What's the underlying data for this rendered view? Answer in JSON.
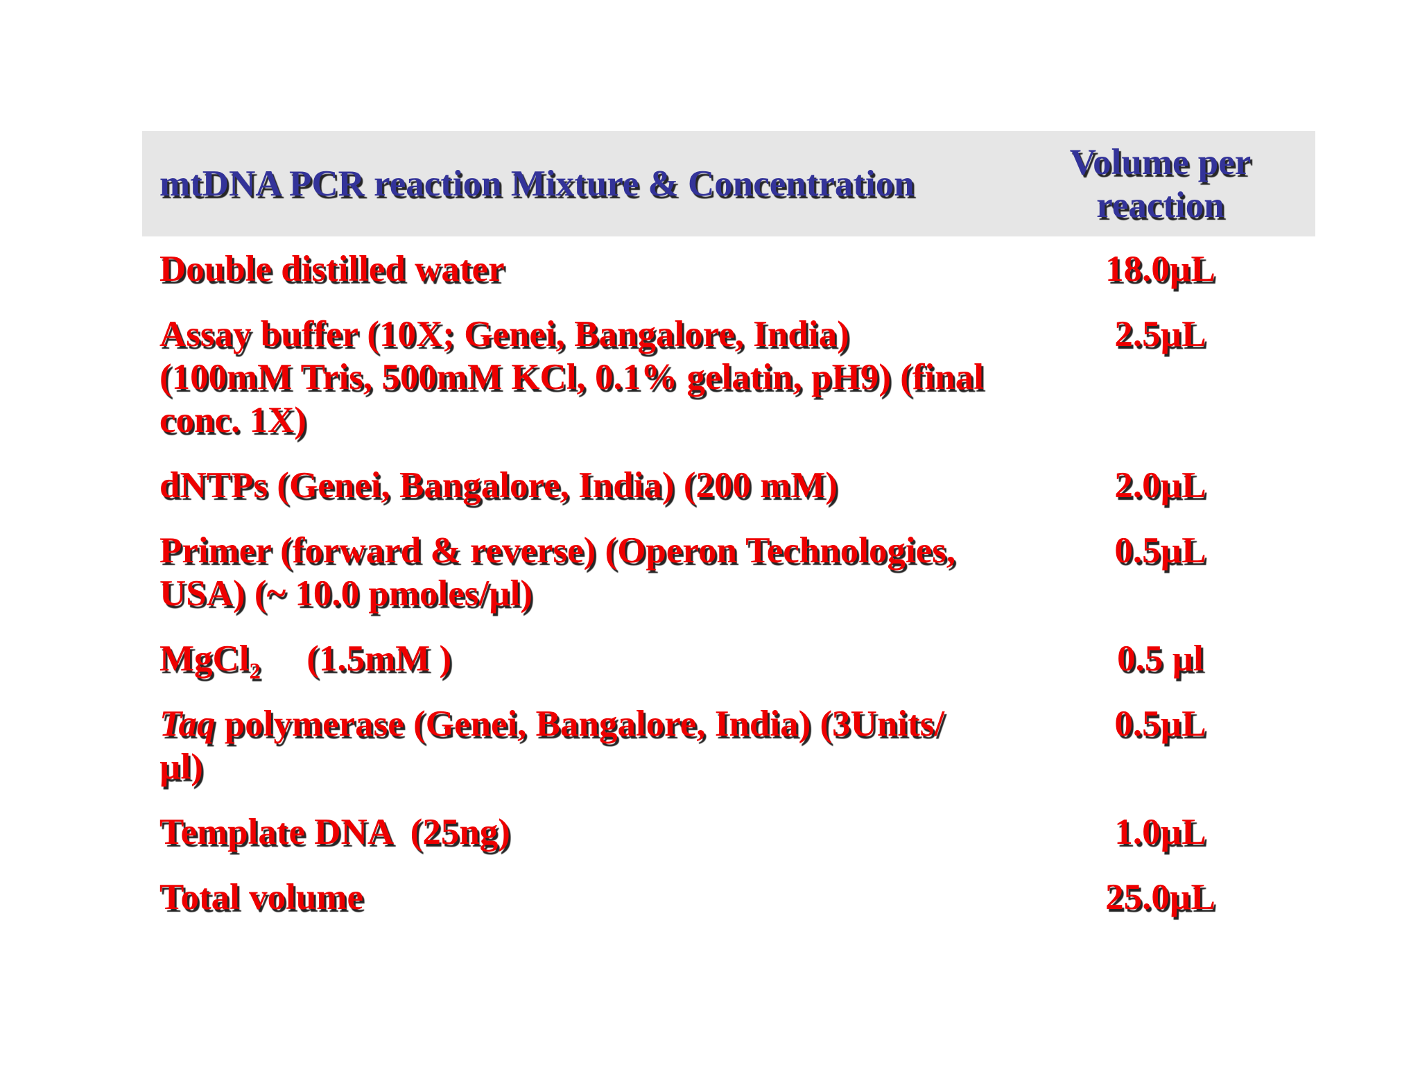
{
  "colors": {
    "page_bg": "#FFFFFF",
    "header_bg": "#E6E6E6",
    "title_color": "#333399",
    "row_text_color": "#EE0000",
    "shadow_color": "#262626"
  },
  "table": {
    "header": {
      "col1": "mtDNA PCR reaction Mixture & Concentration",
      "col2": "Volume per\nreaction"
    },
    "rows": [
      {
        "label": [
          {
            "text": "Double distilled water"
          }
        ],
        "volume": "18.0µL"
      },
      {
        "label": [
          {
            "text": "Assay buffer (10X; Genei, Bangalore, India)\n(100mM Tris, 500mM KCl, 0.1% gelatin, pH9) (final\nconc. 1X)"
          }
        ],
        "volume": "2.5µL"
      },
      {
        "label": [
          {
            "text": "dNTPs (Genei, Bangalore, India) (200 mM)"
          }
        ],
        "volume": "2.0µL"
      },
      {
        "label": [
          {
            "text": "Primer (forward & reverse) (Operon Technologies,\nUSA) (~ 10.0 pmoles/µl)"
          }
        ],
        "volume": "0.5µL"
      },
      {
        "label": [
          {
            "text": "MgCl"
          },
          {
            "text": "2",
            "style": "sub"
          },
          {
            "text": "     (1.5mM )"
          }
        ],
        "volume": "0.5 µl"
      },
      {
        "label": [
          {
            "text": "Taq",
            "style": "i"
          },
          {
            "text": " polymerase (Genei, Bangalore, India) (3Units/\nµl)"
          }
        ],
        "volume": "0.5µL"
      },
      {
        "label": [
          {
            "text": "Template DNA  (25ng)"
          }
        ],
        "volume": "1.0µL"
      },
      {
        "label": [
          {
            "text": "Total volume"
          }
        ],
        "volume": "25.0µL"
      }
    ]
  }
}
